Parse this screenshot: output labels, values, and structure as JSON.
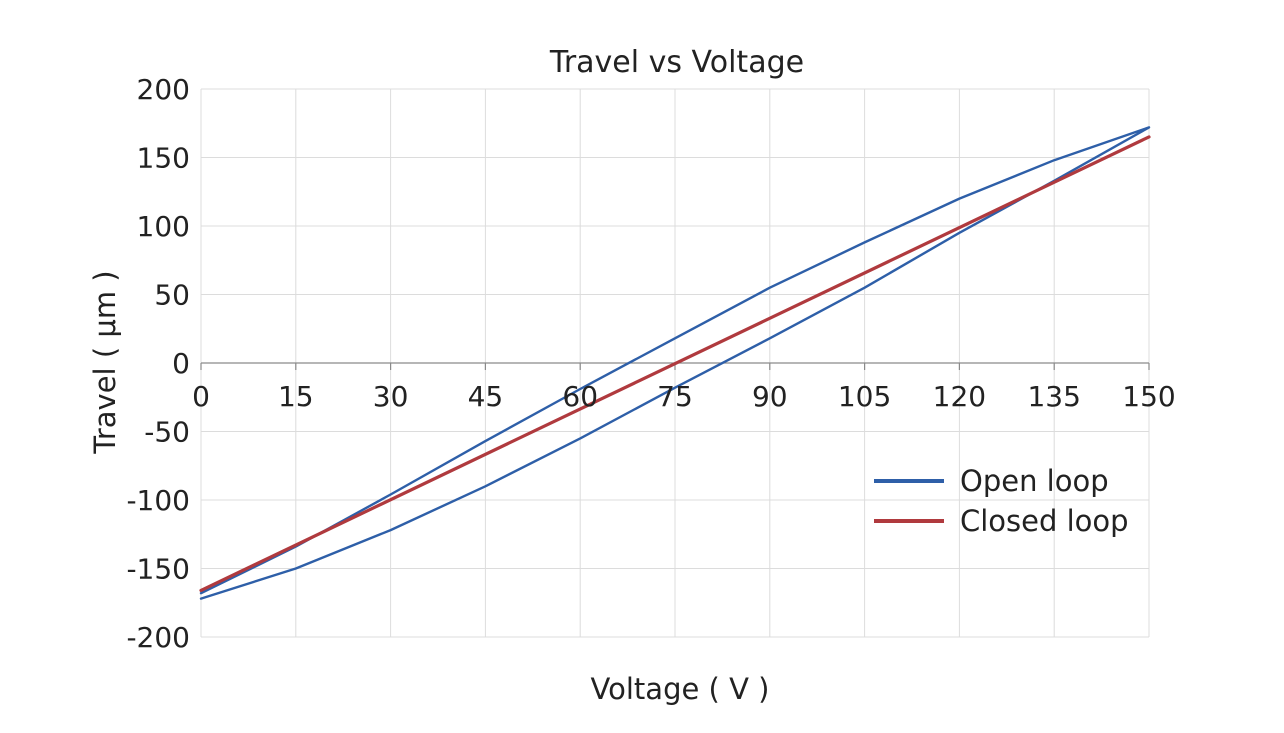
{
  "chart_data": {
    "type": "line",
    "title": "Travel vs Voltage",
    "xlabel": "Voltage ( V )",
    "ylabel": "Travel ( μm )",
    "xlim": [
      0,
      150
    ],
    "ylim": [
      -200,
      200
    ],
    "x_ticks": [
      0,
      15,
      30,
      45,
      60,
      75,
      90,
      105,
      120,
      135,
      150
    ],
    "y_ticks": [
      200,
      150,
      100,
      50,
      0,
      -50,
      -100,
      -150,
      -200
    ],
    "grid": true,
    "legend_position": "right",
    "series": [
      {
        "name": "Open loop",
        "color": "#2e5fa8",
        "x": [
          0,
          15,
          30,
          45,
          60,
          75,
          90,
          105,
          120,
          135,
          150,
          150,
          135,
          120,
          105,
          90,
          75,
          60,
          45,
          30,
          15,
          0
        ],
        "y": [
          -172,
          -150,
          -122,
          -90,
          -55,
          -18,
          18,
          55,
          95,
          133,
          172,
          172,
          148,
          120,
          88,
          55,
          18,
          -19,
          -57,
          -96,
          -134,
          -168
        ]
      },
      {
        "name": "Closed loop",
        "color": "#b03a3e",
        "x": [
          0,
          150
        ],
        "y": [
          -166,
          165
        ]
      }
    ]
  }
}
